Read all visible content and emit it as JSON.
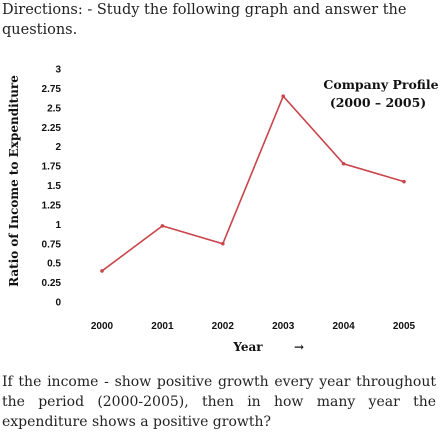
{
  "directions": "Directions: - Study the following graph and answer the questions.",
  "question": "If the income - show positive growth every year throughout the period (2000-2005), then in how many year the expenditure shows a positive growth?",
  "chart_data": {
    "type": "line",
    "title": "Company Profile",
    "subtitle": "(2000 – 2005)",
    "xlabel": "Year",
    "ylabel": "Ratio of Income to Expenditure",
    "categories": [
      "2000",
      "2001",
      "2002",
      "2003",
      "2004",
      "2005"
    ],
    "values": [
      0.4,
      0.98,
      0.75,
      2.65,
      1.78,
      1.55
    ],
    "ylim": [
      0,
      3
    ],
    "yticks": [
      "0",
      "0.25",
      "0.5",
      "0.75",
      "1",
      "1.25",
      "1.5",
      "1.75",
      "2",
      "2.25",
      "2.5",
      "2.75",
      "3"
    ],
    "line_color": "#c9454b",
    "grid": false,
    "legend": "none"
  }
}
